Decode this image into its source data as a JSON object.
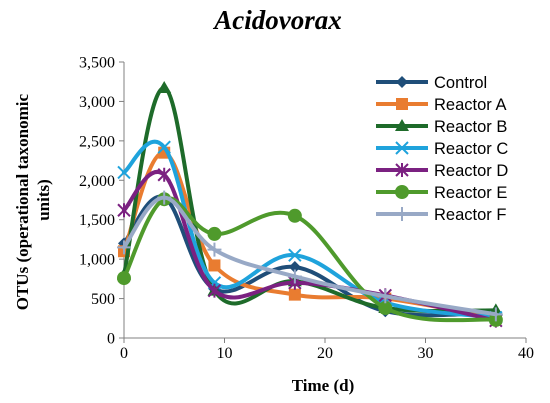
{
  "chart_data": {
    "type": "line",
    "title": "Acidovorax",
    "xlabel": "Time (d)",
    "ylabel": "OTUs (operational taxonomic units)",
    "ylabel_lines": [
      "OTUs (operational taxonomic",
      "units)"
    ],
    "xlim": [
      0,
      40
    ],
    "ylim": [
      0,
      3500
    ],
    "x_ticks": [
      0,
      10,
      20,
      30,
      40
    ],
    "x_tick_labels": [
      "0",
      "10",
      "20",
      "30",
      "40"
    ],
    "y_ticks": [
      0,
      500,
      1000,
      1500,
      2000,
      2500,
      3000,
      3500
    ],
    "y_tick_labels": [
      "0",
      "500",
      "1,000",
      "1,500",
      "2,000",
      "2,500",
      "3,000",
      "3,500"
    ],
    "grid": false,
    "legend_position": "top-right",
    "x": [
      0,
      4,
      9,
      17,
      26,
      37
    ],
    "series": [
      {
        "name": "Control",
        "color": "#1f4e79",
        "marker": "diamond",
        "values": [
          1200,
          1780,
          620,
          900,
          340,
          320
        ]
      },
      {
        "name": "Reactor A",
        "color": "#e97c30",
        "marker": "square",
        "values": [
          1100,
          2350,
          920,
          550,
          500,
          250
        ]
      },
      {
        "name": "Reactor B",
        "color": "#1e6b2a",
        "marker": "triangle",
        "values": [
          800,
          3170,
          600,
          720,
          380,
          350
        ]
      },
      {
        "name": "Reactor C",
        "color": "#1fa3dc",
        "marker": "x",
        "values": [
          2100,
          2420,
          700,
          1050,
          450,
          260
        ]
      },
      {
        "name": "Reactor D",
        "color": "#7b2181",
        "marker": "asterisk",
        "values": [
          1620,
          2070,
          600,
          700,
          540,
          220
        ]
      },
      {
        "name": "Reactor E",
        "color": "#4f9a2c",
        "marker": "circle",
        "values": [
          760,
          1760,
          1320,
          1550,
          380,
          230
        ]
      },
      {
        "name": "Reactor F",
        "color": "#98a9c6",
        "marker": "plus",
        "values": [
          1150,
          1780,
          1120,
          780,
          530,
          300
        ]
      }
    ]
  }
}
